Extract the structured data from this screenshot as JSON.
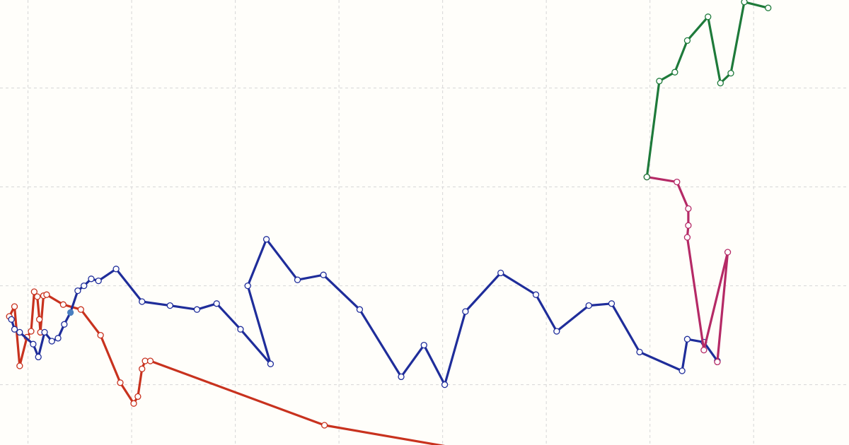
{
  "chart_data": {
    "type": "line",
    "title": "",
    "xlabel": "",
    "ylabel": "",
    "grid": true,
    "legend": "none",
    "xlim": [
      -0.27,
      7.92
    ],
    "ylim": [
      -0.61,
      3.89
    ],
    "x_gridlines": [
      0,
      1,
      2,
      3,
      4,
      5,
      6,
      7
    ],
    "y_gridlines": [
      0,
      1,
      2,
      3
    ],
    "series": [
      {
        "color": "#c8321e",
        "points": [
          [
            -0.18,
            0.69
          ],
          [
            -0.13,
            0.79
          ],
          [
            -0.08,
            0.19
          ],
          [
            -0.01,
            0.48
          ],
          [
            0.03,
            0.54
          ],
          [
            0.06,
            0.94
          ],
          [
            0.09,
            0.89
          ],
          [
            0.11,
            0.66
          ],
          [
            0.12,
            0.53
          ],
          [
            0.15,
            0.9
          ],
          [
            0.18,
            0.91
          ],
          [
            0.34,
            0.81
          ],
          [
            0.51,
            0.76
          ],
          [
            0.7,
            0.5
          ],
          [
            0.89,
            0.02
          ],
          [
            1.02,
            -0.19
          ],
          [
            1.06,
            -0.12
          ],
          [
            1.1,
            0.16
          ],
          [
            1.13,
            0.24
          ],
          [
            1.18,
            0.24
          ],
          [
            2.86,
            -0.41
          ],
          [
            4.51,
            -0.71
          ]
        ]
      },
      {
        "color": "#1f2d9a",
        "points": [
          [
            -0.16,
            0.66
          ],
          [
            -0.13,
            0.56
          ],
          [
            -0.08,
            0.53
          ],
          [
            0.05,
            0.41
          ],
          [
            0.1,
            0.28
          ],
          [
            0.16,
            0.53
          ],
          [
            0.23,
            0.44
          ],
          [
            0.29,
            0.47
          ],
          [
            0.35,
            0.61
          ],
          [
            0.41,
            0.73
          ],
          [
            0.48,
            0.95
          ],
          [
            0.54,
            1.0
          ],
          [
            0.61,
            1.07
          ],
          [
            0.68,
            1.05
          ],
          [
            0.85,
            1.17
          ],
          [
            1.1,
            0.84
          ],
          [
            1.37,
            0.8
          ],
          [
            1.63,
            0.76
          ],
          [
            1.82,
            0.82
          ],
          [
            2.05,
            0.56
          ],
          [
            2.34,
            0.21
          ],
          [
            2.12,
            1.0
          ],
          [
            2.3,
            1.47
          ],
          [
            2.6,
            1.06
          ],
          [
            2.85,
            1.11
          ],
          [
            3.2,
            0.76
          ],
          [
            3.6,
            0.08
          ],
          [
            3.82,
            0.4
          ],
          [
            4.02,
            0.0
          ],
          [
            4.22,
            0.74
          ],
          [
            4.56,
            1.13
          ],
          [
            4.9,
            0.91
          ],
          [
            5.1,
            0.54
          ],
          [
            5.41,
            0.8
          ],
          [
            5.63,
            0.82
          ],
          [
            5.9,
            0.33
          ],
          [
            6.31,
            0.14
          ],
          [
            6.36,
            0.46
          ],
          [
            6.52,
            0.43
          ],
          [
            6.65,
            0.24
          ]
        ],
        "filled_point_index": 9
      },
      {
        "color": "#b52a66",
        "points": [
          [
            5.97,
            2.1
          ],
          [
            6.26,
            2.05
          ],
          [
            6.37,
            1.78
          ],
          [
            6.37,
            1.61
          ],
          [
            6.36,
            1.49
          ],
          [
            6.52,
            0.35
          ],
          [
            6.75,
            1.34
          ],
          [
            6.65,
            0.23
          ]
        ]
      },
      {
        "color": "#1e7a3a",
        "points": [
          [
            5.97,
            2.1
          ],
          [
            6.09,
            3.07
          ],
          [
            6.24,
            3.16
          ],
          [
            6.36,
            3.48
          ],
          [
            6.56,
            3.72
          ],
          [
            6.68,
            3.05
          ],
          [
            6.78,
            3.15
          ],
          [
            6.91,
            3.87
          ],
          [
            7.14,
            3.81
          ]
        ]
      }
    ]
  }
}
